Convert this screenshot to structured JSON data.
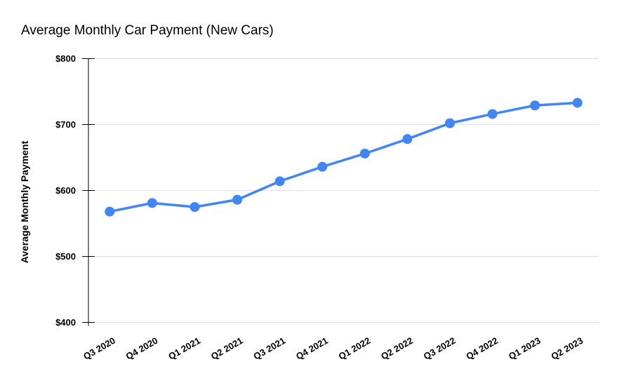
{
  "chart_data": {
    "type": "line",
    "title": "Average Monthly Car Payment (New Cars)",
    "ylabel": "Average Monthly Payment",
    "xlabel": "",
    "categories": [
      "Q3 2020",
      "Q4 2020",
      "Q1 2021",
      "Q2 2021",
      "Q3 2021",
      "Q4 2021",
      "Q1 2022",
      "Q2 2022",
      "Q3 2022",
      "Q4 2022",
      "Q1 2023",
      "Q2 2023"
    ],
    "series": [
      {
        "name": "Average Monthly Payment",
        "values": [
          568,
          581,
          575,
          586,
          614,
          636,
          656,
          678,
          702,
          716,
          729,
          733
        ]
      }
    ],
    "ylim": [
      400,
      800
    ],
    "ytick_step": 100,
    "ytick_labels": [
      "$400",
      "$500",
      "$600",
      "$700",
      "$800"
    ],
    "grid": true,
    "legend": "none",
    "colors": {
      "line": "#4285F4",
      "marker": "#4285F4",
      "gridline": "#e0e0e0",
      "axis": "#000000",
      "text": "#000000",
      "background": "#ffffff"
    }
  }
}
